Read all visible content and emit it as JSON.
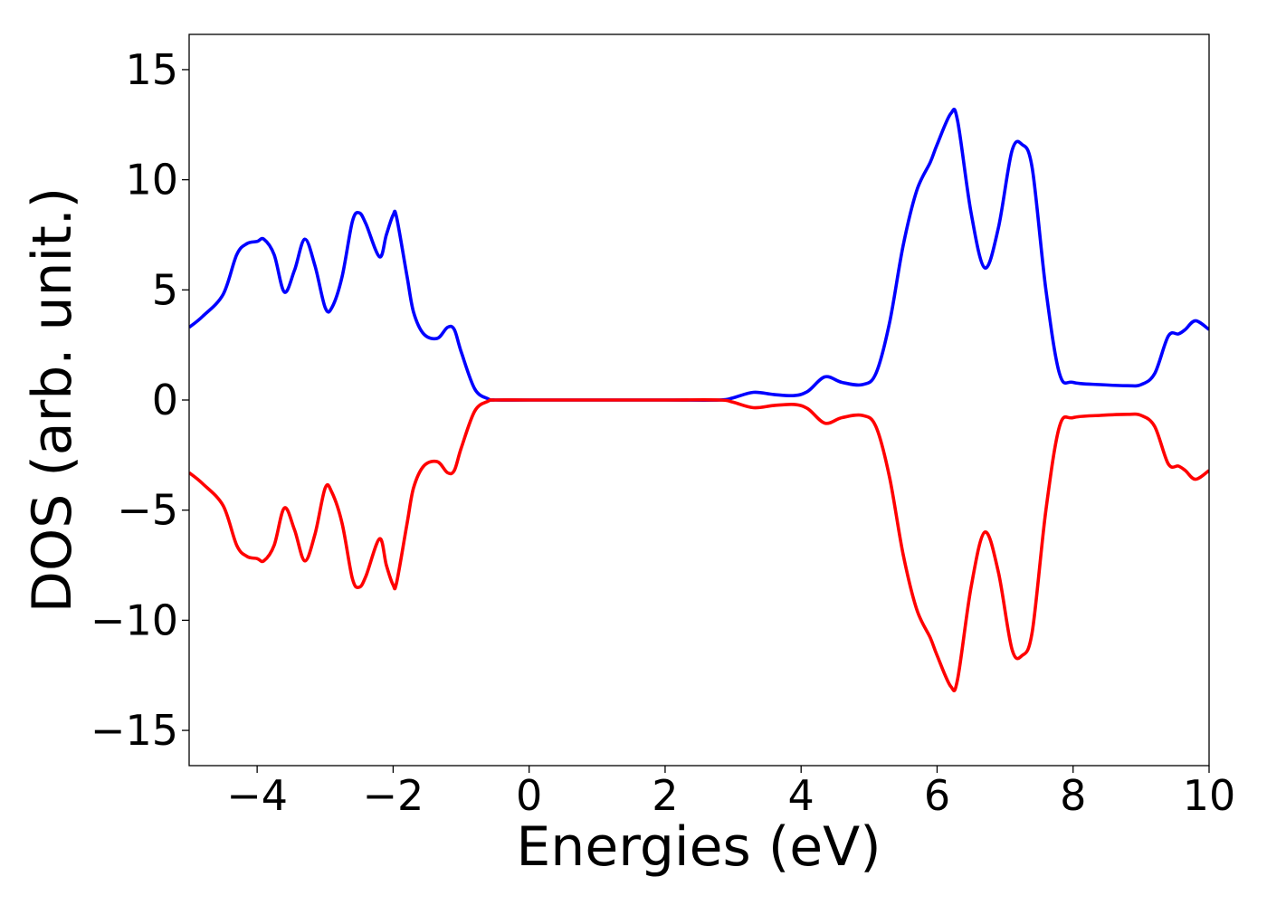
{
  "chart_data": {
    "type": "line",
    "title": "",
    "xlabel": "Energies (eV)",
    "ylabel": "DOS (arb. unit.)",
    "xlim": [
      -5,
      10
    ],
    "ylim": [
      -16.6,
      16.6
    ],
    "xticks": [
      -4,
      -2,
      0,
      2,
      4,
      6,
      8,
      10
    ],
    "xtick_labels": [
      "−4",
      "−2",
      "0",
      "2",
      "4",
      "6",
      "8",
      "10"
    ],
    "yticks": [
      15,
      10,
      5,
      0,
      -5,
      -10,
      -15
    ],
    "ytick_labels": [
      "15",
      "10",
      "5",
      "0",
      "−5",
      "−10",
      "−15"
    ],
    "grid": false,
    "legend": "none",
    "series": [
      {
        "color": "#0000ff",
        "x": [
          -5.0,
          -4.8,
          -4.5,
          -4.3,
          -4.15,
          -4.0,
          -3.9,
          -3.75,
          -3.6,
          -3.45,
          -3.3,
          -3.15,
          -3.0,
          -2.9,
          -2.75,
          -2.6,
          -2.5,
          -2.4,
          -2.2,
          -2.1,
          -2.0,
          -1.95,
          -1.8,
          -1.7,
          -1.55,
          -1.35,
          -1.2,
          -1.1,
          -1.0,
          -0.8,
          -0.6,
          -0.5,
          0.0,
          1.0,
          2.0,
          2.8,
          3.0,
          3.3,
          3.6,
          3.9,
          4.1,
          4.35,
          4.6,
          4.9,
          5.1,
          5.3,
          5.5,
          5.7,
          5.9,
          6.0,
          6.2,
          6.3,
          6.5,
          6.7,
          6.9,
          7.1,
          7.25,
          7.4,
          7.6,
          7.8,
          8.0,
          8.4,
          8.8,
          9.0,
          9.2,
          9.4,
          9.55,
          9.65,
          9.8,
          10.0
        ],
        "y": [
          3.3,
          3.8,
          4.8,
          6.6,
          7.1,
          7.2,
          7.3,
          6.6,
          4.9,
          5.9,
          7.3,
          6.1,
          4.2,
          4.2,
          5.6,
          8.1,
          8.5,
          8.0,
          6.5,
          7.5,
          8.4,
          8.3,
          5.7,
          4.0,
          3.0,
          2.8,
          3.3,
          3.2,
          2.2,
          0.5,
          0.05,
          0.0,
          0.0,
          0.0,
          0.0,
          0.0,
          0.1,
          0.35,
          0.25,
          0.2,
          0.4,
          1.05,
          0.8,
          0.7,
          1.2,
          3.5,
          7.0,
          9.5,
          10.8,
          11.6,
          13.0,
          12.7,
          8.5,
          6.0,
          7.8,
          11.3,
          11.6,
          10.5,
          5.0,
          1.2,
          0.8,
          0.7,
          0.65,
          0.7,
          1.2,
          2.9,
          3.0,
          3.2,
          3.6,
          3.2
        ]
      },
      {
        "color": "#ff0000",
        "x": [
          -5.0,
          -4.8,
          -4.5,
          -4.3,
          -4.15,
          -4.0,
          -3.9,
          -3.75,
          -3.6,
          -3.45,
          -3.3,
          -3.15,
          -3.0,
          -2.9,
          -2.75,
          -2.6,
          -2.5,
          -2.4,
          -2.2,
          -2.1,
          -2.0,
          -1.95,
          -1.8,
          -1.7,
          -1.55,
          -1.35,
          -1.2,
          -1.1,
          -1.0,
          -0.8,
          -0.6,
          -0.5,
          0.0,
          1.0,
          2.0,
          2.8,
          3.0,
          3.3,
          3.6,
          3.9,
          4.1,
          4.35,
          4.6,
          4.9,
          5.1,
          5.3,
          5.5,
          5.7,
          5.9,
          6.0,
          6.2,
          6.3,
          6.5,
          6.7,
          6.9,
          7.1,
          7.25,
          7.4,
          7.6,
          7.8,
          8.0,
          8.4,
          8.8,
          9.0,
          9.2,
          9.4,
          9.55,
          9.65,
          9.8,
          10.0
        ],
        "y": [
          -3.3,
          -3.8,
          -4.8,
          -6.6,
          -7.1,
          -7.2,
          -7.3,
          -6.6,
          -4.9,
          -5.9,
          -7.3,
          -6.1,
          -4.0,
          -4.2,
          -5.6,
          -8.1,
          -8.5,
          -8.0,
          -6.3,
          -7.5,
          -8.4,
          -8.3,
          -5.7,
          -4.0,
          -3.0,
          -2.8,
          -3.3,
          -3.2,
          -2.2,
          -0.5,
          -0.05,
          0.0,
          0.0,
          0.0,
          0.0,
          0.0,
          -0.1,
          -0.35,
          -0.25,
          -0.2,
          -0.4,
          -1.05,
          -0.8,
          -0.7,
          -1.2,
          -3.5,
          -7.0,
          -9.5,
          -10.8,
          -11.6,
          -13.0,
          -12.7,
          -8.5,
          -6.0,
          -7.8,
          -11.3,
          -11.6,
          -10.5,
          -5.0,
          -1.2,
          -0.8,
          -0.7,
          -0.65,
          -0.7,
          -1.2,
          -2.9,
          -3.0,
          -3.2,
          -3.6,
          -3.2
        ]
      }
    ]
  }
}
